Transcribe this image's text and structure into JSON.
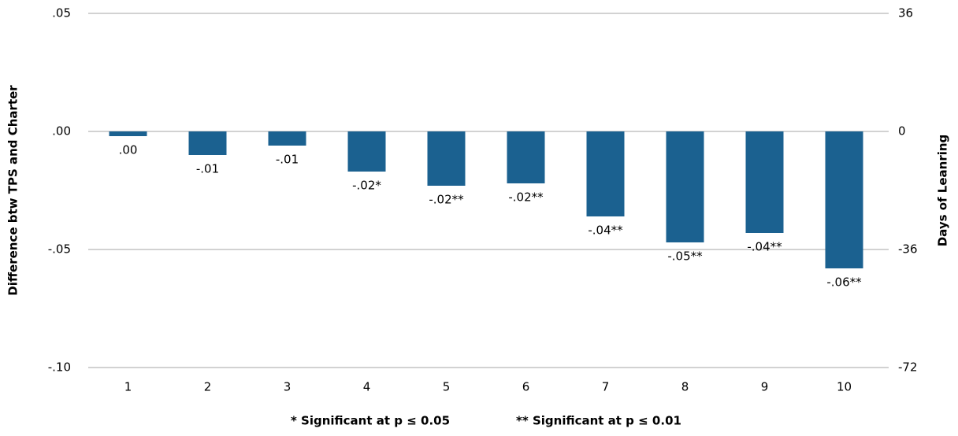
{
  "chart_data": {
    "type": "bar",
    "y_label": "Difference btw TPS and Charter",
    "y2_label": "Days of Leanring",
    "notes": [
      "* Significant at p ≤ 0.05",
      "** Significant at p ≤ 0.01"
    ],
    "categories": [
      "1",
      "2",
      "3",
      "4",
      "5",
      "6",
      "7",
      "8",
      "9",
      "10"
    ],
    "values": [
      -0.002,
      -0.01,
      -0.006,
      -0.017,
      -0.023,
      -0.022,
      -0.036,
      -0.047,
      -0.043,
      -0.058
    ],
    "value_labels": [
      ".00",
      "-.01",
      "-.01",
      "-.02*",
      "-.02**",
      "-.02**",
      "-.04**",
      "-.05**",
      "-.04**",
      "-.06**"
    ],
    "color": "#1b6190",
    "ylim": [
      -0.1,
      0.05
    ],
    "yticks": [
      {
        "value": 0.05,
        "label": ".05"
      },
      {
        "value": 0,
        "label": ".00"
      },
      {
        "value": -0.05,
        "label": "-.05"
      },
      {
        "value": -0.1,
        "label": "-.10"
      }
    ],
    "y2lim": [
      -72,
      36
    ],
    "y2ticks": [
      -72,
      -36,
      0,
      36
    ],
    "grid": true
  }
}
